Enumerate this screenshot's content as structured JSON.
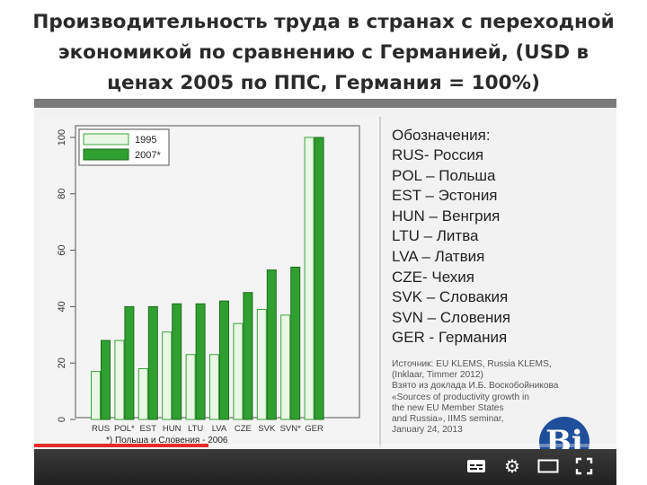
{
  "title": {
    "line1": "Производительность труда в странах с переходной",
    "line2": "экономикой по сравнению с Германией, (USD в",
    "line3": "ценах 2005 по ППС, Германия = 100%)"
  },
  "legend_box": {
    "title": "Обозначения:",
    "items": [
      "RUS- Россия",
      "POL – Польша",
      "EST – Эстония",
      "HUN – Венгрия",
      "LTU – Литва",
      "LVA – Латвия",
      "CZE- Чехия",
      "SVK – Словакия",
      "SVN – Словения",
      "GER - Германия"
    ]
  },
  "source": {
    "lines": [
      "Источник: EU KLEMS, Russia KLEMS,",
      "(Inklaar, Timmer 2012)",
      "Взято из доклада И.Б. Воскобойникова",
      "«Sources of productivity growth in",
      "the new EU Member States",
      "and Russia», IIMS seminar,",
      "January 24, 2013"
    ]
  },
  "footnote": "*) Польша и Словения - 2006",
  "chart_data": {
    "type": "bar",
    "categories": [
      "RUS",
      "POL*",
      "EST",
      "HUN",
      "LTU",
      "LVA",
      "CZE",
      "SVK",
      "SVN*",
      "GER"
    ],
    "series": [
      {
        "name": "1995",
        "values": [
          17,
          28,
          18,
          31,
          23,
          23,
          34,
          39,
          37,
          100
        ],
        "color": "#e9f7e4",
        "stroke": "#3aa23a"
      },
      {
        "name": "2007*",
        "values": [
          28,
          40,
          40,
          41,
          41,
          42,
          45,
          53,
          54,
          100
        ],
        "color": "#2fa02f",
        "stroke": "#1e6e1e"
      }
    ],
    "ylim": [
      0,
      100
    ],
    "yticks": [
      0,
      20,
      40,
      60,
      80,
      100
    ],
    "legend_position": "top-left",
    "grid": false
  },
  "player": {
    "progress": 0.3
  },
  "logo_text": "Ві",
  "colors": {
    "background": "#f2f2f2",
    "bar_light": "#e9f7e4",
    "bar_dark": "#2fa02f",
    "progress": "#e52d27",
    "logo": "#1f4f9b"
  },
  "icons": [
    "subtitles-icon",
    "gear-icon",
    "theater-mode-icon",
    "fullscreen-icon"
  ]
}
